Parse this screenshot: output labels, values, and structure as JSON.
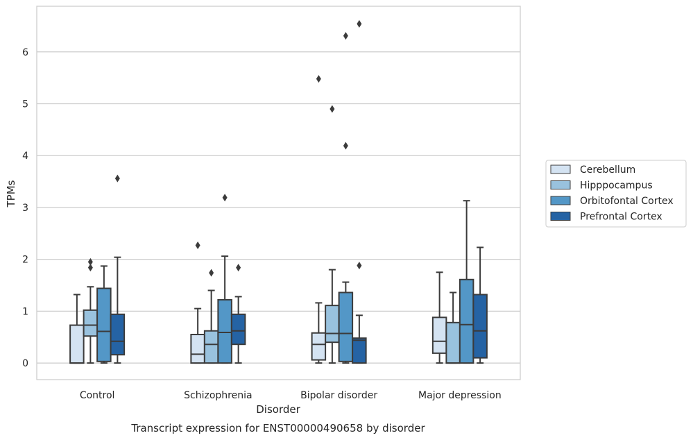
{
  "chart_data": {
    "type": "boxplot",
    "title": "Transcript expression for ENST00000490658 by disorder",
    "xlabel": "Disorder",
    "ylabel": "TPMs",
    "ylim": [
      -0.32,
      6.88
    ],
    "yticks": [
      0,
      1,
      2,
      3,
      4,
      5,
      6
    ],
    "grid": "horizontal",
    "legend_position": "right",
    "categories": [
      "Control",
      "Schizophrenia",
      "Bipolar disorder",
      "Major depression"
    ],
    "series": [
      {
        "name": "Cerebellum",
        "color": "#d4e3f2",
        "boxes": [
          {
            "whislo": 0.0,
            "q1": 0.0,
            "med": 0.0,
            "q3": 0.73,
            "whishi": 1.32,
            "fliers": []
          },
          {
            "whislo": 0.0,
            "q1": 0.0,
            "med": 0.17,
            "q3": 0.55,
            "whishi": 1.05,
            "fliers": [
              2.27
            ]
          },
          {
            "whislo": 0.0,
            "q1": 0.06,
            "med": 0.36,
            "q3": 0.58,
            "whishi": 1.16,
            "fliers": [
              5.48
            ]
          },
          {
            "whislo": 0.0,
            "q1": 0.19,
            "med": 0.42,
            "q3": 0.88,
            "whishi": 1.75,
            "fliers": []
          }
        ]
      },
      {
        "name": "Hipppocampus",
        "color": "#99c2de",
        "boxes": [
          {
            "whislo": 0.0,
            "q1": 0.52,
            "med": 0.73,
            "q3": 1.02,
            "whishi": 1.47,
            "fliers": [
              1.84,
              1.95
            ]
          },
          {
            "whislo": 0.0,
            "q1": 0.0,
            "med": 0.36,
            "q3": 0.62,
            "whishi": 1.4,
            "fliers": [
              1.74
            ]
          },
          {
            "whislo": 0.0,
            "q1": 0.4,
            "med": 0.57,
            "q3": 1.11,
            "whishi": 1.8,
            "fliers": [
              4.9
            ]
          },
          {
            "whislo": 0.0,
            "q1": 0.0,
            "med": 0.0,
            "q3": 0.78,
            "whishi": 1.36,
            "fliers": []
          }
        ]
      },
      {
        "name": "Orbitofontal Cortex",
        "color": "#5397c7",
        "boxes": [
          {
            "whislo": 0.0,
            "q1": 0.03,
            "med": 0.61,
            "q3": 1.44,
            "whishi": 1.87,
            "fliers": []
          },
          {
            "whislo": 0.0,
            "q1": 0.0,
            "med": 0.59,
            "q3": 1.22,
            "whishi": 2.06,
            "fliers": [
              3.19
            ]
          },
          {
            "whislo": 0.0,
            "q1": 0.03,
            "med": 0.57,
            "q3": 1.36,
            "whishi": 1.56,
            "fliers": [
              4.19,
              6.31
            ]
          },
          {
            "whislo": 0.0,
            "q1": 0.0,
            "med": 0.74,
            "q3": 1.61,
            "whishi": 3.13,
            "fliers": []
          }
        ]
      },
      {
        "name": "Prefrontal Cortex",
        "color": "#2563a4",
        "boxes": [
          {
            "whislo": 0.0,
            "q1": 0.16,
            "med": 0.42,
            "q3": 0.94,
            "whishi": 2.04,
            "fliers": [
              3.56
            ]
          },
          {
            "whislo": 0.0,
            "q1": 0.36,
            "med": 0.62,
            "q3": 0.94,
            "whishi": 1.28,
            "fliers": [
              1.84
            ]
          },
          {
            "whislo": 0.0,
            "q1": 0.0,
            "med": 0.44,
            "q3": 0.48,
            "whishi": 0.92,
            "fliers": [
              1.88,
              6.54
            ]
          },
          {
            "whislo": 0.0,
            "q1": 0.1,
            "med": 0.62,
            "q3": 1.32,
            "whishi": 2.23,
            "fliers": []
          }
        ]
      }
    ]
  }
}
